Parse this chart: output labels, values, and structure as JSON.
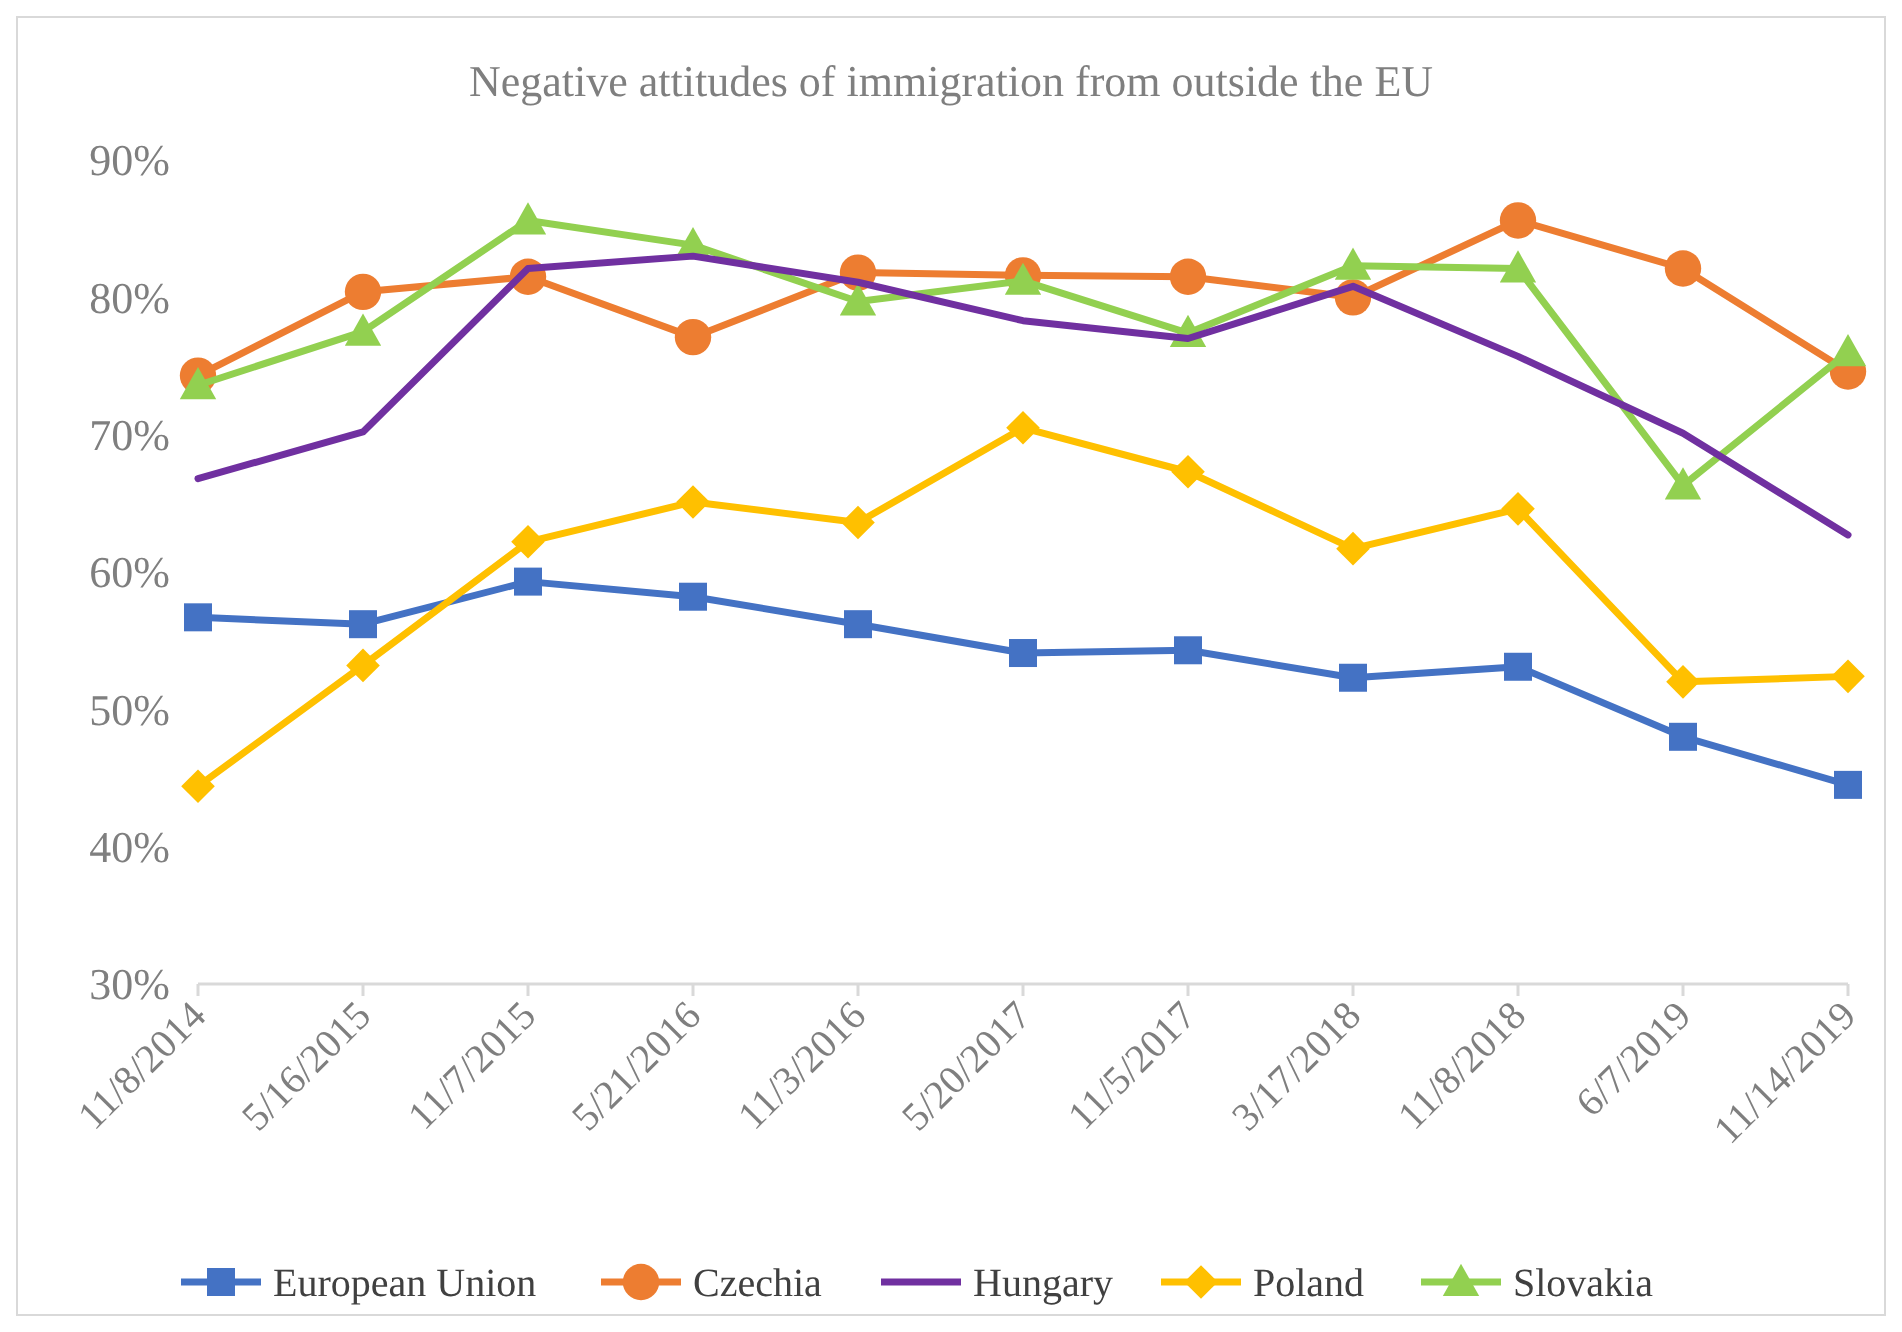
{
  "chart_data": {
    "type": "line",
    "title": "Negative attitudes of immigration from outside the EU",
    "categories": [
      "11/8/2014",
      "5/16/2015",
      "11/7/2015",
      "5/21/2016",
      "11/3/2016",
      "5/20/2017",
      "11/5/2017",
      "3/17/2018",
      "11/8/2018",
      "6/7/2019",
      "11/14/2019"
    ],
    "ylim": [
      30,
      90
    ],
    "yticks": [
      {
        "value": 30,
        "label": "30%"
      },
      {
        "value": 40,
        "label": "40%"
      },
      {
        "value": 50,
        "label": "50%"
      },
      {
        "value": 60,
        "label": "60%"
      },
      {
        "value": 70,
        "label": "70%"
      },
      {
        "value": 80,
        "label": "80%"
      },
      {
        "value": 90,
        "label": "90%"
      }
    ],
    "grid": false,
    "legend": "bottom",
    "series": [
      {
        "name": "European Union",
        "color": "#4472c4",
        "marker": "square",
        "values": [
          56.7,
          56.2,
          59.3,
          58.2,
          56.2,
          54.1,
          54.3,
          52.3,
          53.1,
          48.0,
          44.5
        ]
      },
      {
        "name": "Czechia",
        "color": "#ed7d31",
        "marker": "circle",
        "values": [
          74.3,
          80.4,
          81.5,
          77.1,
          81.8,
          81.6,
          81.5,
          80.0,
          85.6,
          82.1,
          74.6
        ]
      },
      {
        "name": "Hungary",
        "color": "#7030a0",
        "marker": "none",
        "values": [
          66.8,
          70.2,
          82.1,
          83.0,
          81.1,
          78.3,
          77.0,
          80.8,
          75.7,
          70.1,
          62.7
        ]
      },
      {
        "name": "Poland",
        "color": "#ffc000",
        "marker": "diamond",
        "values": [
          44.4,
          53.2,
          62.2,
          65.1,
          63.6,
          70.5,
          67.3,
          61.7,
          64.6,
          52.0,
          52.4
        ]
      },
      {
        "name": "Slovakia",
        "color": "#92d050",
        "marker": "triangle",
        "values": [
          73.6,
          77.5,
          85.6,
          83.8,
          79.7,
          81.2,
          77.4,
          82.3,
          82.1,
          66.3,
          76.0
        ]
      }
    ]
  }
}
